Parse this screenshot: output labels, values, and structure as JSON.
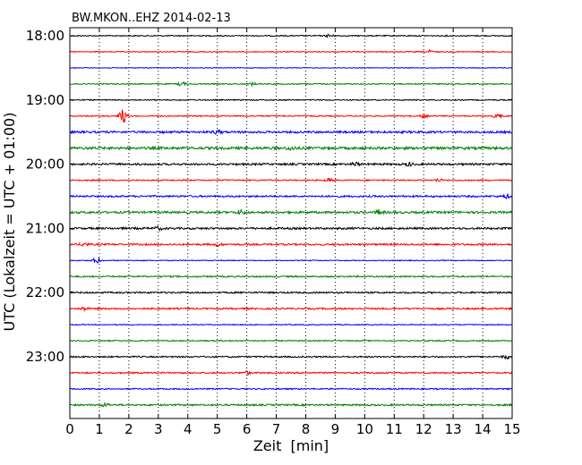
{
  "chart_data": {
    "type": "line",
    "title": "BW.MKON..EHZ 2014-02-13",
    "xlabel": "Zeit  [min]",
    "ylabel": "UTC (Lokalzeit = UTC + 01:00)",
    "xlim": [
      0,
      15
    ],
    "xticks": [
      "0",
      "1",
      "2",
      "3",
      "4",
      "5",
      "6",
      "7",
      "8",
      "9",
      "10",
      "11",
      "12",
      "13",
      "14",
      "15"
    ],
    "yticks": [
      "18:00",
      "19:00",
      "20:00",
      "21:00",
      "22:00",
      "23:00"
    ],
    "grid": "vertical dotted",
    "trace_interval_min": 15,
    "trace_colors": [
      "#000000",
      "#ff0000",
      "#0000ff",
      "#008000"
    ],
    "traces": [
      {
        "start": "18:00",
        "level": 0.6,
        "events": [
          {
            "t": 8.8,
            "amp": 1.6
          }
        ]
      },
      {
        "start": "18:15",
        "level": 0.5,
        "events": [
          {
            "t": 12.2,
            "amp": 1.8
          }
        ]
      },
      {
        "start": "18:30",
        "level": 0.4,
        "events": []
      },
      {
        "start": "18:45",
        "level": 0.6,
        "events": [
          {
            "t": 3.8,
            "amp": 2.2
          },
          {
            "t": 6.2,
            "amp": 1.5
          }
        ]
      },
      {
        "start": "19:00",
        "level": 0.6,
        "events": []
      },
      {
        "start": "19:15",
        "level": 0.6,
        "events": [
          {
            "t": 1.8,
            "amp": 8.0
          },
          {
            "t": 12.0,
            "amp": 2.0
          },
          {
            "t": 14.5,
            "amp": 2.5
          }
        ]
      },
      {
        "start": "19:30",
        "level": 1.2,
        "events": [
          {
            "t": 5.0,
            "amp": 1.8
          }
        ]
      },
      {
        "start": "19:45",
        "level": 1.4,
        "events": [
          {
            "t": 7.5,
            "amp": 2.0
          }
        ]
      },
      {
        "start": "20:00",
        "level": 1.1,
        "events": [
          {
            "t": 9.7,
            "amp": 2.0
          },
          {
            "t": 11.5,
            "amp": 1.8
          }
        ]
      },
      {
        "start": "20:15",
        "level": 0.7,
        "events": [
          {
            "t": 8.8,
            "amp": 1.8
          },
          {
            "t": 12.5,
            "amp": 1.8
          }
        ]
      },
      {
        "start": "20:30",
        "level": 1.0,
        "events": [
          {
            "t": 14.8,
            "amp": 1.8
          }
        ]
      },
      {
        "start": "20:45",
        "level": 1.2,
        "events": [
          {
            "t": 5.8,
            "amp": 2.2
          },
          {
            "t": 10.5,
            "amp": 2.5
          }
        ]
      },
      {
        "start": "21:00",
        "level": 1.1,
        "events": [
          {
            "t": 3.0,
            "amp": 1.6
          }
        ]
      },
      {
        "start": "21:15",
        "level": 1.0,
        "events": [
          {
            "t": 0.5,
            "amp": 1.8
          },
          {
            "t": 5.0,
            "amp": 1.5
          }
        ]
      },
      {
        "start": "21:30",
        "level": 0.5,
        "events": [
          {
            "t": 0.9,
            "amp": 3.5
          }
        ]
      },
      {
        "start": "21:45",
        "level": 0.8,
        "events": []
      },
      {
        "start": "22:00",
        "level": 0.9,
        "events": []
      },
      {
        "start": "22:15",
        "level": 0.9,
        "events": [
          {
            "t": 0.5,
            "amp": 1.8
          }
        ]
      },
      {
        "start": "22:30",
        "level": 0.5,
        "events": []
      },
      {
        "start": "22:45",
        "level": 0.6,
        "events": []
      },
      {
        "start": "23:00",
        "level": 0.8,
        "events": [
          {
            "t": 14.8,
            "amp": 2.2
          }
        ]
      },
      {
        "start": "23:15",
        "level": 0.8,
        "events": [
          {
            "t": 6.0,
            "amp": 1.8
          }
        ]
      },
      {
        "start": "23:30",
        "level": 0.7,
        "events": []
      },
      {
        "start": "23:45",
        "level": 0.9,
        "events": [
          {
            "t": 1.2,
            "amp": 2.0
          }
        ]
      }
    ]
  }
}
